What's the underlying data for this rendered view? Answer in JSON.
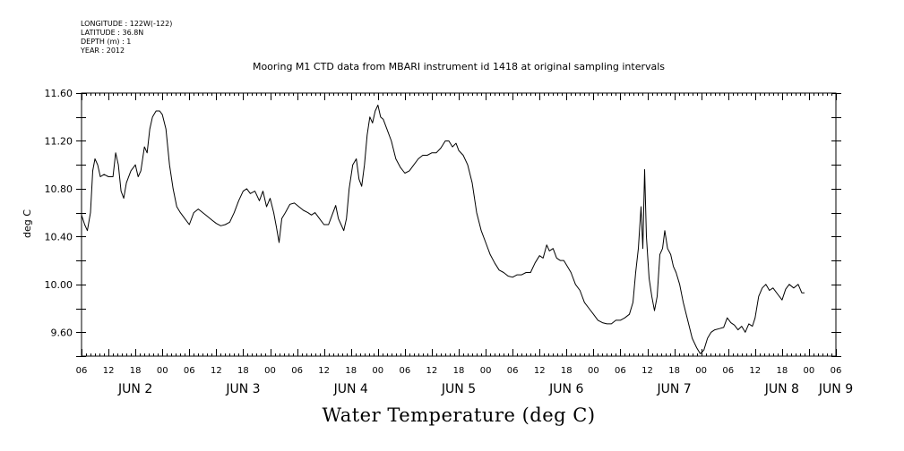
{
  "header": {
    "longitude": "LONGITUDE : 122W(-122)",
    "latitude": "LATITUDE : 36.8N",
    "depth": "DEPTH (m) : 1",
    "year": "YEAR : 2012"
  },
  "chart_data": {
    "type": "line",
    "title": "Mooring M1 CTD data from MBARI instrument id 1418 at original sampling intervals",
    "xlabel": "Water Temperature (deg C)",
    "ylabel": "deg C",
    "ylim": [
      9.4,
      11.6
    ],
    "xlim_hours": [
      0,
      168
    ],
    "y_ticks": [
      "11.60",
      "11.20",
      "10.80",
      "10.40",
      "10.00",
      "9.60"
    ],
    "y_tick_values": [
      11.6,
      11.2,
      10.8,
      10.4,
      10.0,
      9.6
    ],
    "x_hour_labels": [
      "06",
      "12",
      "18",
      "00",
      "06",
      "12",
      "18",
      "00",
      "06",
      "12",
      "18",
      "00",
      "06",
      "12",
      "18",
      "00",
      "06",
      "12",
      "18",
      "00",
      "06",
      "12",
      "18",
      "00",
      "06",
      "12",
      "18",
      "00",
      "06"
    ],
    "x_day_labels": [
      {
        "label": "JUN 2",
        "hour": 12
      },
      {
        "label": "JUN 3",
        "hour": 36
      },
      {
        "label": "JUN 4",
        "hour": 60
      },
      {
        "label": "JUN 5",
        "hour": 84
      },
      {
        "label": "JUN 6",
        "hour": 108
      },
      {
        "label": "JUN 7",
        "hour": 132
      },
      {
        "label": "JUN 8",
        "hour": 156
      },
      {
        "label": "JUN 9",
        "hour": 168
      }
    ],
    "series": [
      {
        "points": [
          [
            0,
            10.58
          ],
          [
            0.7,
            10.5
          ],
          [
            1.3,
            10.45
          ],
          [
            2,
            10.6
          ],
          [
            2.5,
            10.95
          ],
          [
            3,
            11.05
          ],
          [
            3.6,
            11.0
          ],
          [
            4.2,
            10.9
          ],
          [
            5,
            10.92
          ],
          [
            6,
            10.9
          ],
          [
            7,
            10.9
          ],
          [
            7.6,
            11.1
          ],
          [
            8.2,
            11.0
          ],
          [
            8.8,
            10.78
          ],
          [
            9.4,
            10.72
          ],
          [
            10,
            10.85
          ],
          [
            11,
            10.95
          ],
          [
            12,
            11.0
          ],
          [
            12.6,
            10.9
          ],
          [
            13.2,
            10.95
          ],
          [
            14,
            11.15
          ],
          [
            14.6,
            11.1
          ],
          [
            15.2,
            11.3
          ],
          [
            15.8,
            11.4
          ],
          [
            16.6,
            11.45
          ],
          [
            17.4,
            11.45
          ],
          [
            18,
            11.42
          ],
          [
            18.8,
            11.3
          ],
          [
            19.6,
            11.0
          ],
          [
            20.4,
            10.8
          ],
          [
            21.2,
            10.65
          ],
          [
            22,
            10.6
          ],
          [
            23,
            10.55
          ],
          [
            24,
            10.5
          ],
          [
            25,
            10.6
          ],
          [
            26,
            10.63
          ],
          [
            27,
            10.6
          ],
          [
            28,
            10.57
          ],
          [
            29,
            10.54
          ],
          [
            30,
            10.51
          ],
          [
            31,
            10.49
          ],
          [
            32,
            10.5
          ],
          [
            33,
            10.52
          ],
          [
            34,
            10.6
          ],
          [
            35,
            10.7
          ],
          [
            36,
            10.78
          ],
          [
            36.8,
            10.8
          ],
          [
            37.6,
            10.76
          ],
          [
            38.6,
            10.78
          ],
          [
            39.6,
            10.7
          ],
          [
            40.4,
            10.78
          ],
          [
            41.2,
            10.65
          ],
          [
            42,
            10.72
          ],
          [
            42.8,
            10.6
          ],
          [
            43.4,
            10.48
          ],
          [
            44,
            10.35
          ],
          [
            44.6,
            10.55
          ],
          [
            45.4,
            10.6
          ],
          [
            46.4,
            10.67
          ],
          [
            47.4,
            10.68
          ],
          [
            48.4,
            10.65
          ],
          [
            49.4,
            10.62
          ],
          [
            50.4,
            10.6
          ],
          [
            51.2,
            10.58
          ],
          [
            52,
            10.6
          ],
          [
            53,
            10.55
          ],
          [
            54,
            10.5
          ],
          [
            55,
            10.5
          ],
          [
            56,
            10.6
          ],
          [
            56.6,
            10.66
          ],
          [
            57.2,
            10.55
          ],
          [
            57.8,
            10.5
          ],
          [
            58.4,
            10.45
          ],
          [
            59,
            10.55
          ],
          [
            59.6,
            10.8
          ],
          [
            60.4,
            11.0
          ],
          [
            61.2,
            11.05
          ],
          [
            61.8,
            10.88
          ],
          [
            62.4,
            10.82
          ],
          [
            63,
            11.0
          ],
          [
            63.6,
            11.25
          ],
          [
            64.2,
            11.4
          ],
          [
            64.8,
            11.35
          ],
          [
            65.4,
            11.45
          ],
          [
            66,
            11.5
          ],
          [
            66.6,
            11.4
          ],
          [
            67.2,
            11.38
          ],
          [
            68,
            11.3
          ],
          [
            69,
            11.2
          ],
          [
            70,
            11.05
          ],
          [
            71,
            10.98
          ],
          [
            72,
            10.93
          ],
          [
            73,
            10.95
          ],
          [
            74,
            11.0
          ],
          [
            75,
            11.05
          ],
          [
            76,
            11.08
          ],
          [
            77,
            11.08
          ],
          [
            78,
            11.1
          ],
          [
            79,
            11.1
          ],
          [
            80,
            11.14
          ],
          [
            81,
            11.2
          ],
          [
            81.8,
            11.2
          ],
          [
            82.6,
            11.15
          ],
          [
            83.4,
            11.18
          ],
          [
            84,
            11.12
          ],
          [
            85,
            11.08
          ],
          [
            86,
            11.0
          ],
          [
            87,
            10.85
          ],
          [
            88,
            10.6
          ],
          [
            89,
            10.45
          ],
          [
            90,
            10.35
          ],
          [
            91,
            10.25
          ],
          [
            92,
            10.18
          ],
          [
            93,
            10.12
          ],
          [
            94,
            10.1
          ],
          [
            95,
            10.07
          ],
          [
            96,
            10.06
          ],
          [
            97,
            10.08
          ],
          [
            98,
            10.08
          ],
          [
            99,
            10.1
          ],
          [
            100,
            10.1
          ],
          [
            101,
            10.18
          ],
          [
            102,
            10.24
          ],
          [
            102.8,
            10.22
          ],
          [
            103.6,
            10.33
          ],
          [
            104.2,
            10.28
          ],
          [
            105,
            10.3
          ],
          [
            105.8,
            10.22
          ],
          [
            106.6,
            10.2
          ],
          [
            107.4,
            10.2
          ],
          [
            108.2,
            10.15
          ],
          [
            109,
            10.1
          ],
          [
            110,
            10.0
          ],
          [
            111,
            9.95
          ],
          [
            112,
            9.85
          ],
          [
            113,
            9.8
          ],
          [
            114,
            9.75
          ],
          [
            115,
            9.7
          ],
          [
            116,
            9.68
          ],
          [
            117,
            9.67
          ],
          [
            118,
            9.67
          ],
          [
            119,
            9.7
          ],
          [
            120,
            9.7
          ],
          [
            121,
            9.72
          ],
          [
            122,
            9.75
          ],
          [
            122.8,
            9.85
          ],
          [
            123.4,
            10.1
          ],
          [
            124,
            10.3
          ],
          [
            124.6,
            10.65
          ],
          [
            125,
            10.3
          ],
          [
            125.4,
            10.96
          ],
          [
            125.8,
            10.4
          ],
          [
            126.4,
            10.05
          ],
          [
            127,
            9.9
          ],
          [
            127.6,
            9.78
          ],
          [
            128.2,
            9.9
          ],
          [
            128.8,
            10.25
          ],
          [
            129.4,
            10.3
          ],
          [
            129.9,
            10.45
          ],
          [
            130.5,
            10.3
          ],
          [
            131.2,
            10.25
          ],
          [
            131.8,
            10.15
          ],
          [
            132.4,
            10.1
          ],
          [
            133.2,
            10.0
          ],
          [
            134,
            9.85
          ],
          [
            135,
            9.7
          ],
          [
            136,
            9.55
          ],
          [
            137,
            9.47
          ],
          [
            137.8,
            9.42
          ],
          [
            138.6,
            9.45
          ],
          [
            139.4,
            9.55
          ],
          [
            140.2,
            9.6
          ],
          [
            141,
            9.62
          ],
          [
            142,
            9.63
          ],
          [
            143,
            9.64
          ],
          [
            143.8,
            9.72
          ],
          [
            144.6,
            9.68
          ],
          [
            145.4,
            9.66
          ],
          [
            146.2,
            9.62
          ],
          [
            147,
            9.65
          ],
          [
            147.8,
            9.6
          ],
          [
            148.6,
            9.67
          ],
          [
            149.4,
            9.65
          ],
          [
            150,
            9.72
          ],
          [
            150.8,
            9.9
          ],
          [
            151.6,
            9.97
          ],
          [
            152.4,
            10.0
          ],
          [
            153.2,
            9.95
          ],
          [
            154,
            9.97
          ],
          [
            155,
            9.92
          ],
          [
            156,
            9.87
          ],
          [
            156.8,
            9.96
          ],
          [
            157.6,
            10.0
          ],
          [
            158.6,
            9.97
          ],
          [
            159.6,
            10.0
          ],
          [
            160.4,
            9.93
          ],
          [
            161,
            9.93
          ]
        ]
      }
    ]
  }
}
